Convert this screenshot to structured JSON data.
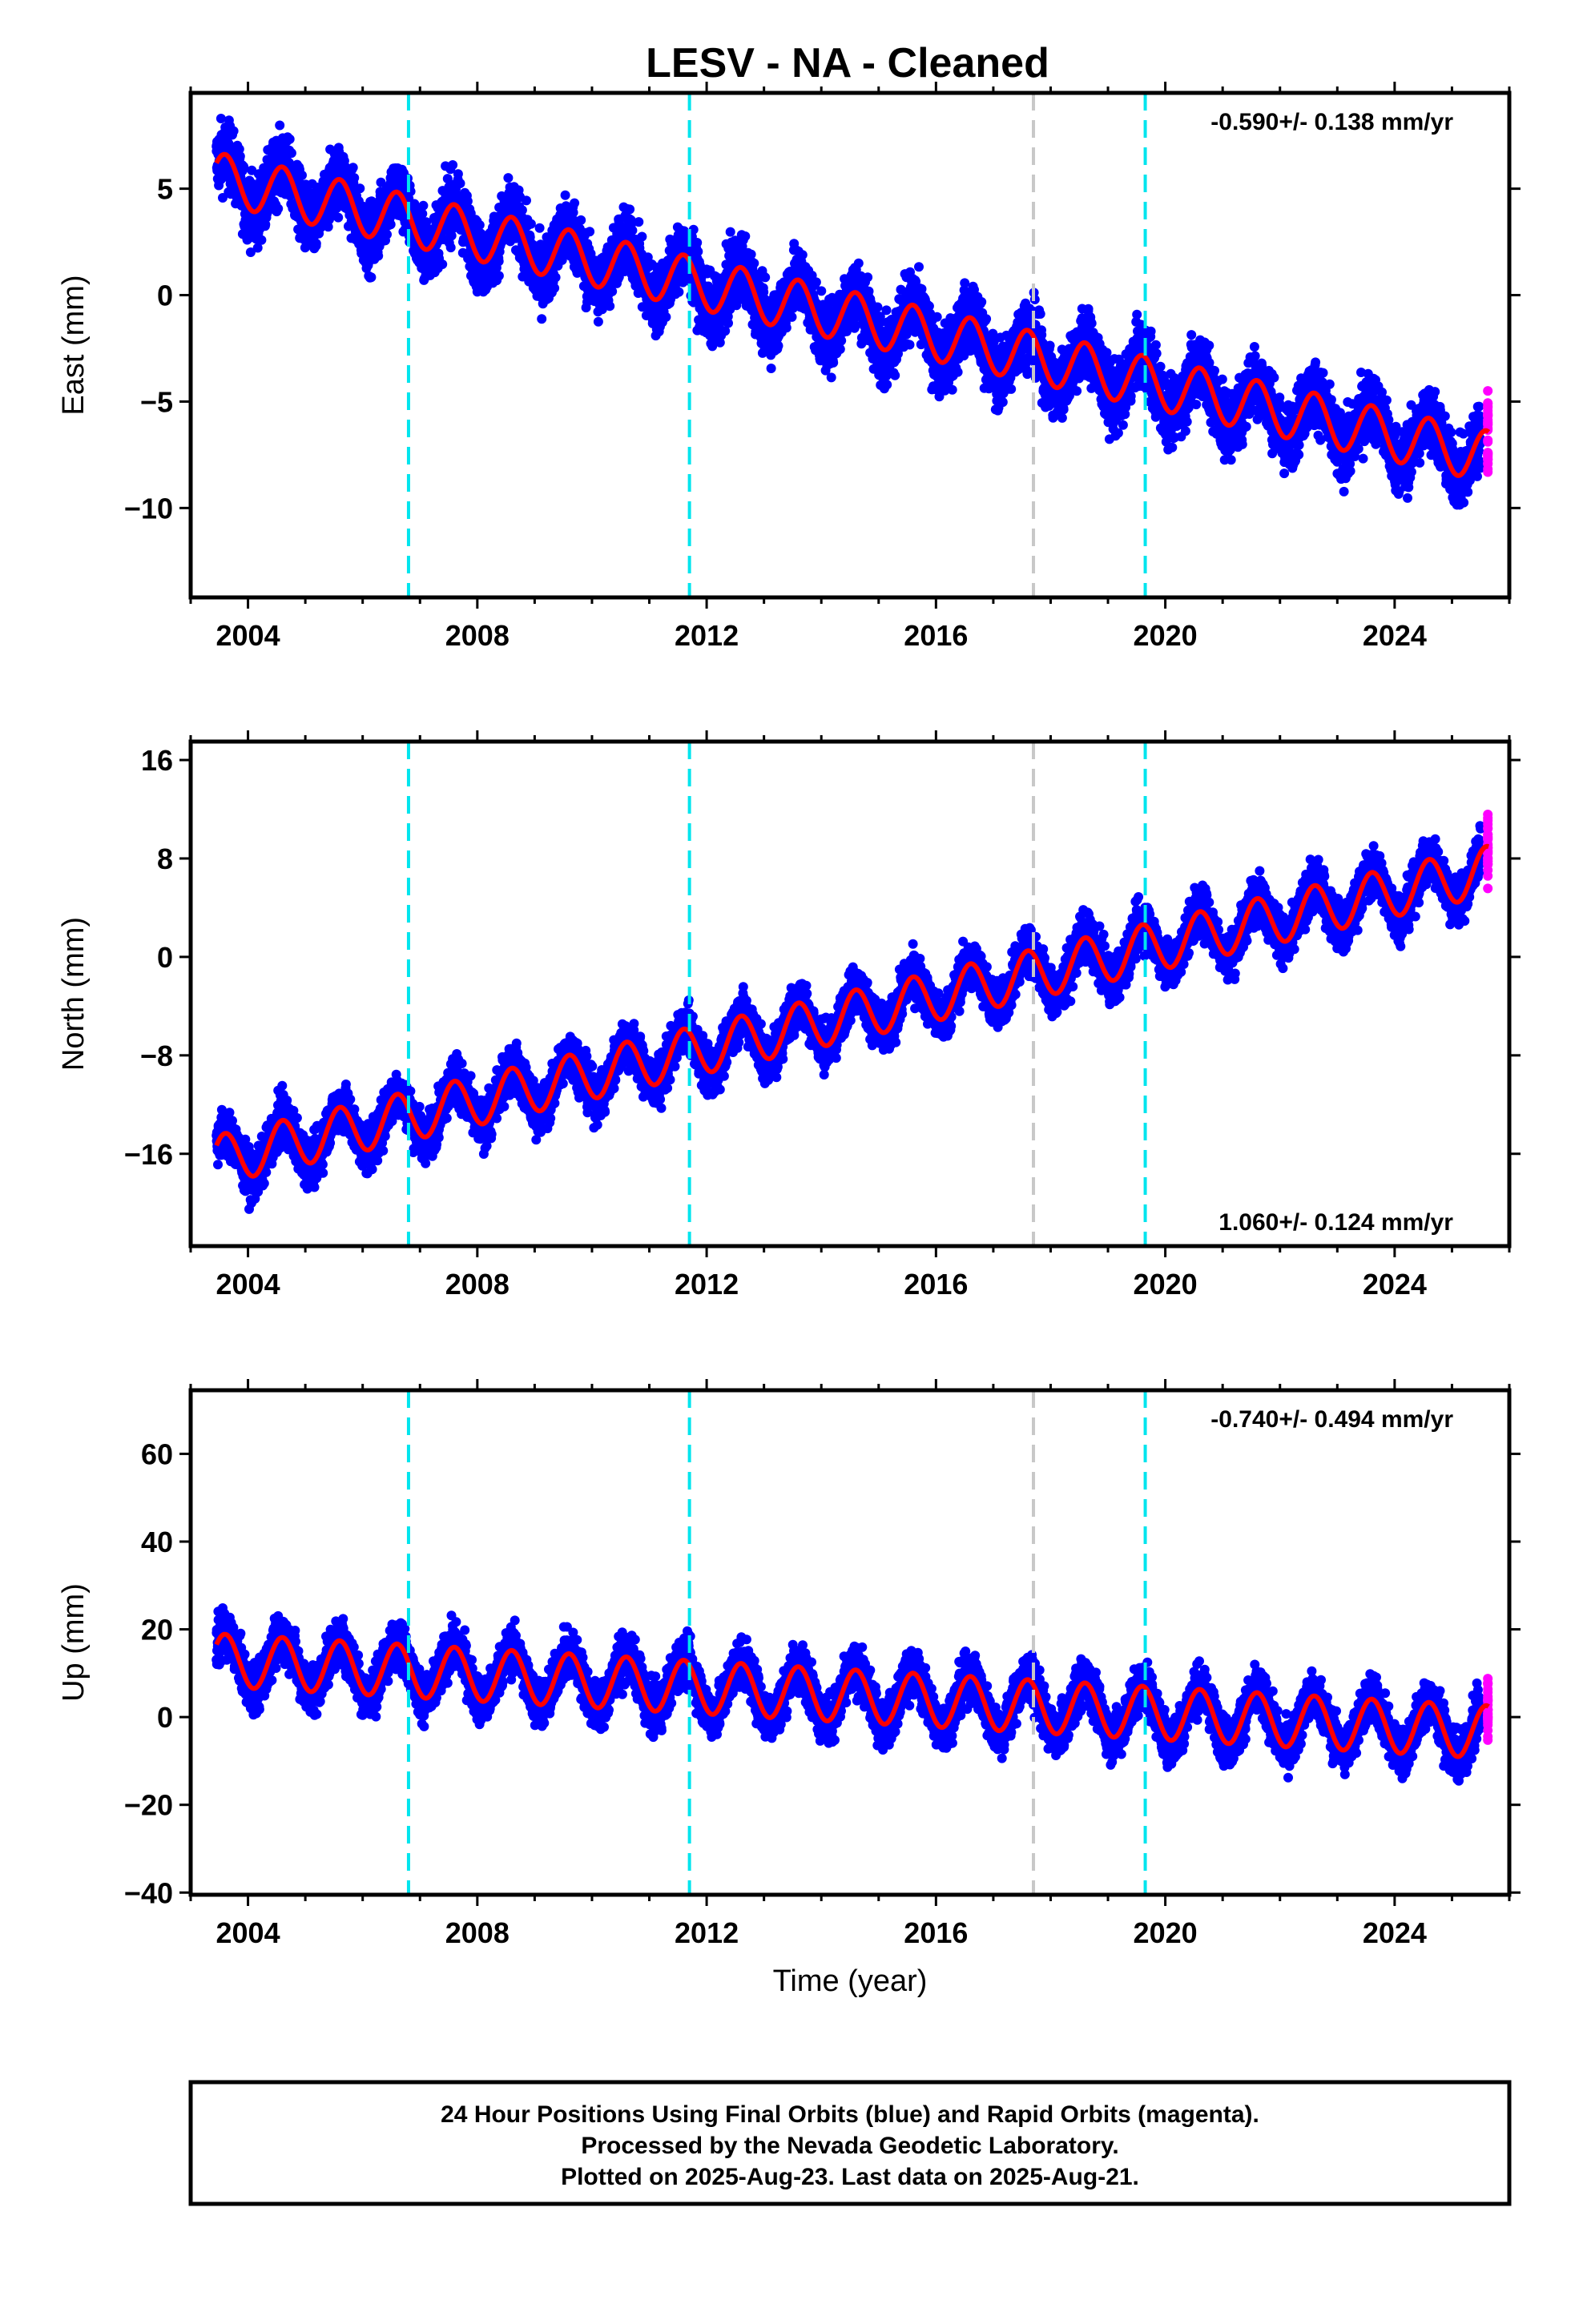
{
  "title": "LESV  - NA - Cleaned",
  "footer": {
    "line1": "24 Hour Positions Using Final Orbits (blue) and Rapid Orbits (magenta).",
    "line2": "Processed by the Nevada Geodetic Laboratory.",
    "line3": "Plotted on 2025-Aug-23. Last data on 2025-Aug-21."
  },
  "colors": {
    "final": "#0000ff",
    "rapid": "#ff00ff",
    "model": "#ff0000",
    "equipment_change": "#00e5ee",
    "other_event": "#c8c8c8"
  },
  "chart_data": [
    {
      "type": "scatter",
      "name": "east",
      "ylabel": "East (mm)",
      "xlabel": "",
      "rate_label": "-0.590+/- 0.138 mm/yr",
      "rate_position": "top-right",
      "xlim": [
        2003.0,
        2026.0
      ],
      "ylim": [
        -14.2,
        9.5
      ],
      "x_ticks": [
        2004,
        2008,
        2012,
        2016,
        2020,
        2024
      ],
      "y_ticks": [
        5,
        0,
        -5,
        -10
      ],
      "data_start": 2003.45,
      "final_end": 2025.5,
      "rapid_end": 2025.64,
      "trend_model": {
        "value_at_start": 5.5,
        "rate_mm_per_yr": -0.59,
        "annual_amplitude": 1.2,
        "annual_phase_year": 2003.6
      },
      "scatter": 1.3,
      "equipment_changes": [
        2006.8,
        2011.7,
        2019.65
      ],
      "other_events": [
        2017.7
      ]
    },
    {
      "type": "scatter",
      "name": "north",
      "ylabel": "North (mm)",
      "xlabel": "",
      "rate_label": "1.060+/- 0.124 mm/yr",
      "rate_position": "bottom-right",
      "xlim": [
        2003.0,
        2026.0
      ],
      "ylim": [
        -23.5,
        17.5
      ],
      "x_ticks": [
        2004,
        2008,
        2012,
        2016,
        2020,
        2024
      ],
      "y_ticks": [
        16,
        8,
        0,
        -8,
        -16
      ],
      "data_start": 2003.45,
      "final_end": 2025.5,
      "rapid_end": 2025.64,
      "trend_model": {
        "value_at_start": -16.5,
        "rate_mm_per_yr": 1.06,
        "annual_amplitude": 2.0,
        "annual_phase_year": 2003.6
      },
      "scatter": 1.6,
      "equipment_changes": [
        2006.8,
        2011.7,
        2019.65
      ],
      "other_events": [
        2017.7
      ]
    },
    {
      "type": "scatter",
      "name": "up",
      "ylabel": "Up (mm)",
      "xlabel": "Time (year)",
      "rate_label": "-0.740+/- 0.494 mm/yr",
      "rate_position": "top-right",
      "xlim": [
        2003.0,
        2026.0
      ],
      "ylim": [
        -40.5,
        74.5
      ],
      "x_ticks": [
        2004,
        2008,
        2012,
        2016,
        2020,
        2024
      ],
      "y_ticks": [
        60,
        40,
        20,
        0,
        -20,
        -40
      ],
      "data_start": 2003.45,
      "final_end": 2025.5,
      "rapid_end": 2025.64,
      "trend_model": {
        "value_at_start": 13.0,
        "rate_mm_per_yr": -0.74,
        "annual_amplitude": 6.0,
        "annual_phase_year": 2003.6
      },
      "scatter": 4.5,
      "equipment_changes": [
        2006.8,
        2011.7,
        2019.65
      ],
      "other_events": [
        2017.7
      ]
    }
  ]
}
